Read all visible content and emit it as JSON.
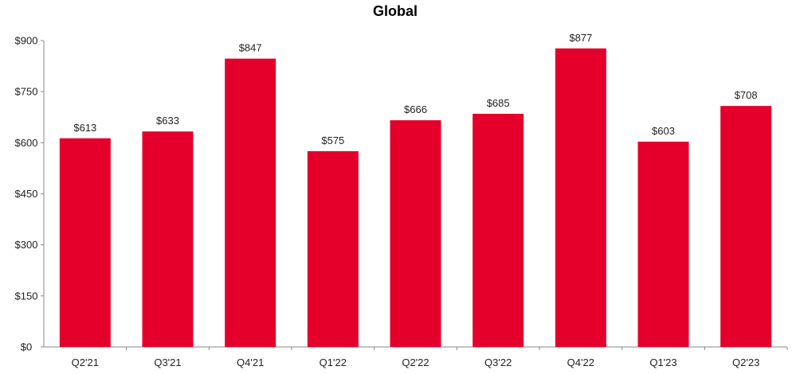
{
  "chart_data": {
    "type": "bar",
    "title": "Global",
    "xlabel": "",
    "ylabel": "",
    "categories": [
      "Q2'21",
      "Q3'21",
      "Q4'21",
      "Q1'22",
      "Q2'22",
      "Q3'22",
      "Q4'22",
      "Q1'23",
      "Q2'23"
    ],
    "values": [
      613,
      633,
      847,
      575,
      666,
      685,
      877,
      603,
      708
    ],
    "value_labels": [
      "$613",
      "$633",
      "$847",
      "$575",
      "$666",
      "$685",
      "$877",
      "$603",
      "$708"
    ],
    "ylim": [
      0,
      900
    ],
    "yticks": [
      0,
      150,
      300,
      450,
      600,
      750,
      900
    ],
    "ytick_labels": [
      "$0",
      "$150",
      "$300",
      "$450",
      "$600",
      "$750",
      "$900"
    ],
    "grid": false,
    "legend": "none",
    "bar_color": "#e4002b"
  }
}
